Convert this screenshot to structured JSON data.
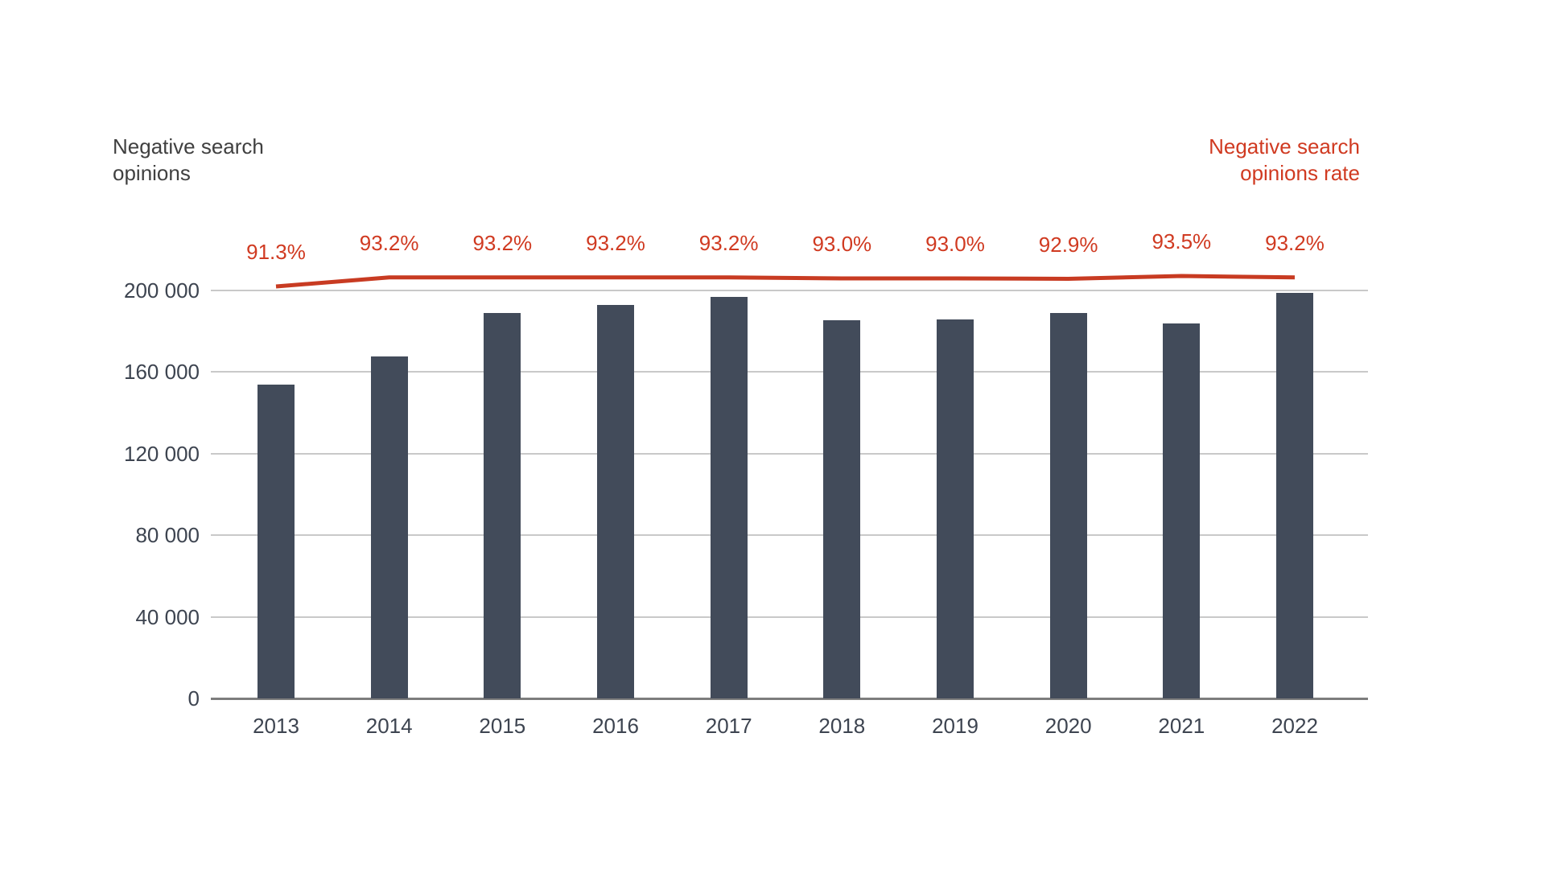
{
  "titles": {
    "left_axis": "Negative search opinions",
    "right_axis": "Negative search opinions rate"
  },
  "colors": {
    "bar": "#424b5a",
    "line": "#c83b22",
    "rate_label_text": "#d03a21",
    "right_title_text": "#d03a21",
    "left_title_text": "#404040",
    "axis_text": "#3d4450",
    "gridline": "#c9c9c9",
    "baseline": "#7d7d7d"
  },
  "chart_data": {
    "type": "bar",
    "title": "",
    "categories": [
      "2013",
      "2014",
      "2015",
      "2016",
      "2017",
      "2018",
      "2019",
      "2020",
      "2021",
      "2022"
    ],
    "series": [
      {
        "name": "Negative search opinions",
        "type": "bar",
        "color": "#424b5a",
        "values": [
          154000,
          167500,
          189000,
          193000,
          197000,
          185400,
          185800,
          189000,
          184000,
          199000
        ]
      },
      {
        "name": "Negative search opinions rate",
        "type": "line",
        "color": "#c83b22",
        "values": [
          91.3,
          93.2,
          93.2,
          93.2,
          93.2,
          93.0,
          93.0,
          92.9,
          93.5,
          93.2
        ],
        "point_labels": [
          "91.3%",
          "93.2%",
          "93.2%",
          "93.2%",
          "93.2%",
          "93.0%",
          "93.0%",
          "92.9%",
          "93.5%",
          "93.2%"
        ]
      }
    ],
    "left_axis": {
      "title": "Negative search opinions",
      "tick_labels": [
        "0",
        "40 000",
        "80 000",
        "120 000",
        "160 000",
        "200 000"
      ],
      "tick_values": [
        0,
        40000,
        80000,
        120000,
        160000,
        200000
      ],
      "range": [
        0,
        200000
      ]
    },
    "right_axis": {
      "title": "Negative search opinions rate",
      "tick_labels": []
    },
    "grid": true,
    "legend_position": "axis-titles-top",
    "xlabel": "",
    "ylabel": "Negative search opinions"
  }
}
